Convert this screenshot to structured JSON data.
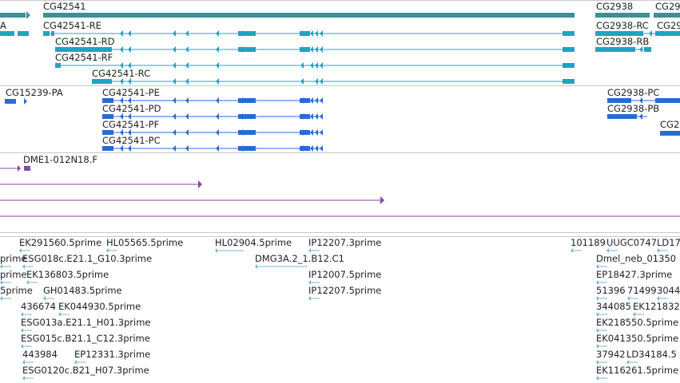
{
  "colors": {
    "gene": "#3d9096",
    "transcript": "#1ea5c0",
    "protein": "#2a6ccf",
    "alignment": "#7f4da0",
    "est": "#7bb5d9",
    "separator": "#c9c9c9",
    "text": "#222222"
  },
  "tracks": {
    "genes": {
      "labels": [
        "CG42541",
        "CG2938",
        "CG29"
      ]
    },
    "transcripts": {
      "labels": [
        "A",
        "CG42541-RE",
        "CG42541-RD",
        "CG42541-RF",
        "CG42541-RC",
        "CG2938-RC",
        "CG29",
        "CG2938-RB"
      ]
    },
    "proteins": {
      "labels": [
        "CG15239-PA",
        "CG42541-PE",
        "CG42541-PD",
        "CG42541-PF",
        "CG42541-PC",
        "CG2938-PC",
        "CG2938-PB",
        "CG2"
      ]
    },
    "alignments": {
      "labels": [
        "DME1-012N18.F"
      ]
    },
    "ests": {
      "labels": [
        "EK291560.5prime",
        "HL05565.5prime",
        "HL02904.5prime",
        "IP12207.3prime",
        "101189",
        "UUGC0747",
        "LD17",
        "prime",
        "ESG018c.E21.1_G10.3prime",
        "DMG3A.2_1.B12.C1",
        "Dmel_neb_01350",
        "prime",
        "EK136803.5prime",
        "IP12007.5prime",
        "EP18427.3prime",
        "5prime",
        "GH01483.5prime",
        "IP12207.5prime",
        "51396",
        "71499",
        "3044",
        "436674",
        "EK044930.5prime",
        "344085",
        "EK121832",
        "ESG013a.E21.1_H01.3prime",
        "EK218550.5prime",
        "ESG015c.B21.1_C12.3prime",
        "EK041350.5prime",
        "443984",
        "EP12331.3prime",
        "37942",
        "LD34184.5",
        "ESG0120c.B21_H07.3prime",
        "EK116261.5prime"
      ]
    }
  }
}
